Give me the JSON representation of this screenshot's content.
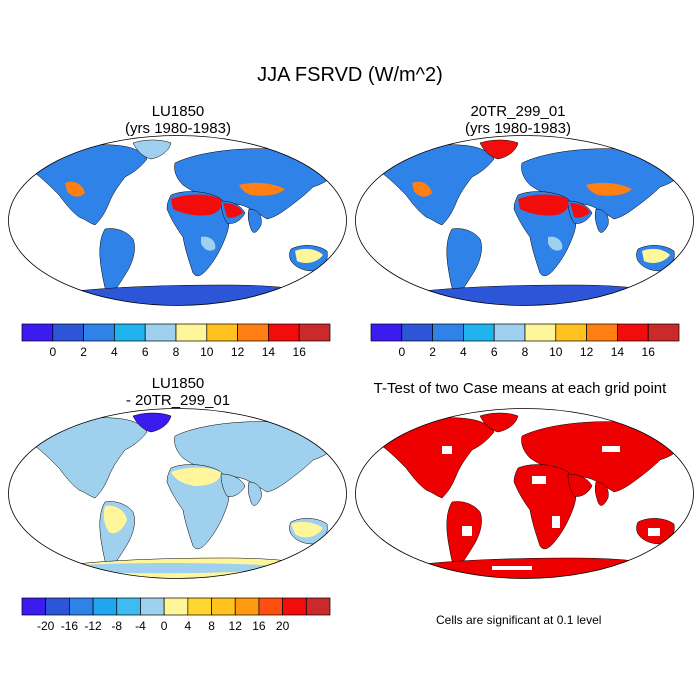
{
  "figure": {
    "title": "JJA FSRVD (W/m^2)"
  },
  "panels": [
    {
      "id": "lu1850",
      "title_line1": "LU1850",
      "title_line2": "(yrs 1980-1983)",
      "fill": "blue-red",
      "colorbar": "abs"
    },
    {
      "id": "20tr",
      "title_line1": "20TR_299_01",
      "title_line2": "(yrs 1980-1983)",
      "fill": "blue-red",
      "colorbar": "abs"
    },
    {
      "id": "diff",
      "title_line1": "LU1850",
      "title_line2": "- 20TR_299_01",
      "fill": "mostly-light",
      "colorbar": "diff"
    },
    {
      "id": "ttest",
      "title_line1": "T-Test of two Case means at each grid point",
      "title_line2": "",
      "fill": "significance",
      "colorbar": "none"
    }
  ],
  "colorbars": {
    "abs": {
      "colors": [
        "#3a1cf0",
        "#2d55d8",
        "#2f83e8",
        "#1fb3ef",
        "#9fd0ee",
        "#fff59a",
        "#ffc21e",
        "#ff7f12",
        "#f20c0c",
        "#cc2a2a"
      ],
      "labels": [
        "0",
        "2",
        "4",
        "6",
        "8",
        "10",
        "12",
        "14",
        "16"
      ]
    },
    "diff": {
      "colors": [
        "#3a1cf0",
        "#2d55d8",
        "#2f83e8",
        "#1fa6ee",
        "#3fbcef",
        "#9fd0ee",
        "#fff59a",
        "#ffd630",
        "#ffc21e",
        "#ff9a10",
        "#ff4f10",
        "#f20c0c",
        "#cc2a2a"
      ],
      "labels": [
        "-20",
        "-16",
        "-12",
        "-8",
        "-4",
        "0",
        "4",
        "8",
        "12",
        "16",
        "20"
      ]
    }
  },
  "significance_note": "Cells are significant at 0.1 level",
  "colors": {
    "significant": "#ee0000",
    "coastline": "#000000"
  }
}
